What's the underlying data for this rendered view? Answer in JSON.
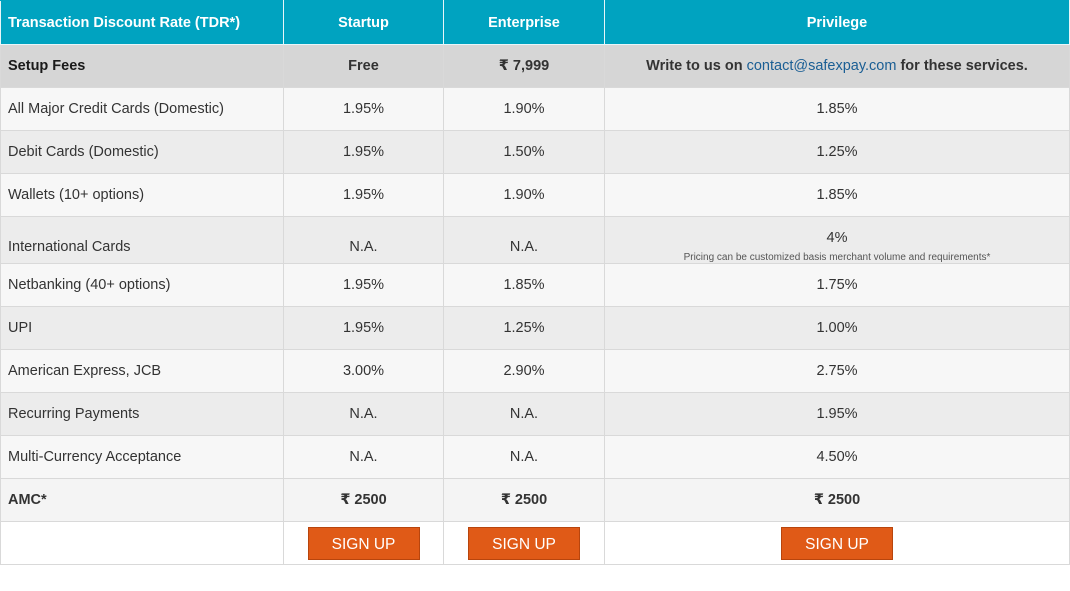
{
  "header": {
    "col0": "Transaction Discount Rate (TDR*)",
    "col1": "Startup",
    "col2": "Enterprise",
    "col3": "Privilege"
  },
  "setup_fees": {
    "label": "Setup Fees",
    "startup": "Free",
    "enterprise": "₹ 7,999",
    "privilege_prefix": "Write to us on ",
    "privilege_email": "contact@safexpay.com",
    "privilege_suffix": " for these services."
  },
  "rows": [
    {
      "label": "All Major Credit Cards (Domestic)",
      "startup": "1.95%",
      "enterprise": "1.90%",
      "privilege": "1.85%"
    },
    {
      "label": "Debit Cards (Domestic)",
      "startup": "1.95%",
      "enterprise": "1.50%",
      "privilege": "1.25%"
    },
    {
      "label": "Wallets (10+ options)",
      "startup": "1.95%",
      "enterprise": "1.90%",
      "privilege": "1.85%"
    },
    {
      "label": "International Cards",
      "startup": "N.A.",
      "enterprise": "N.A.",
      "privilege": "4%",
      "note": "Pricing can be customized basis merchant volume and requirements*"
    },
    {
      "label": "Netbanking (40+ options)",
      "startup": "1.95%",
      "enterprise": "1.85%",
      "privilege": "1.75%"
    },
    {
      "label": "UPI",
      "startup": "1.95%",
      "enterprise": "1.25%",
      "privilege": "1.00%"
    },
    {
      "label": "American Express, JCB",
      "startup": "3.00%",
      "enterprise": "2.90%",
      "privilege": "2.75%"
    },
    {
      "label": "Recurring Payments",
      "startup": "N.A.",
      "enterprise": "N.A.",
      "privilege": "1.95%"
    },
    {
      "label": "Multi-Currency Acceptance",
      "startup": "N.A.",
      "enterprise": "N.A.",
      "privilege": "4.50%"
    }
  ],
  "amc": {
    "label": "AMC*",
    "startup": "₹ 2500",
    "enterprise": "₹ 2500",
    "privilege": "₹ 2500"
  },
  "buttons": {
    "startup": "SIGN UP",
    "enterprise": "SIGN UP",
    "privilege": "SIGN UP"
  },
  "colors": {
    "header_bg": "#00a3c0",
    "button_bg": "#e05a17",
    "link": "#1a5e94"
  }
}
